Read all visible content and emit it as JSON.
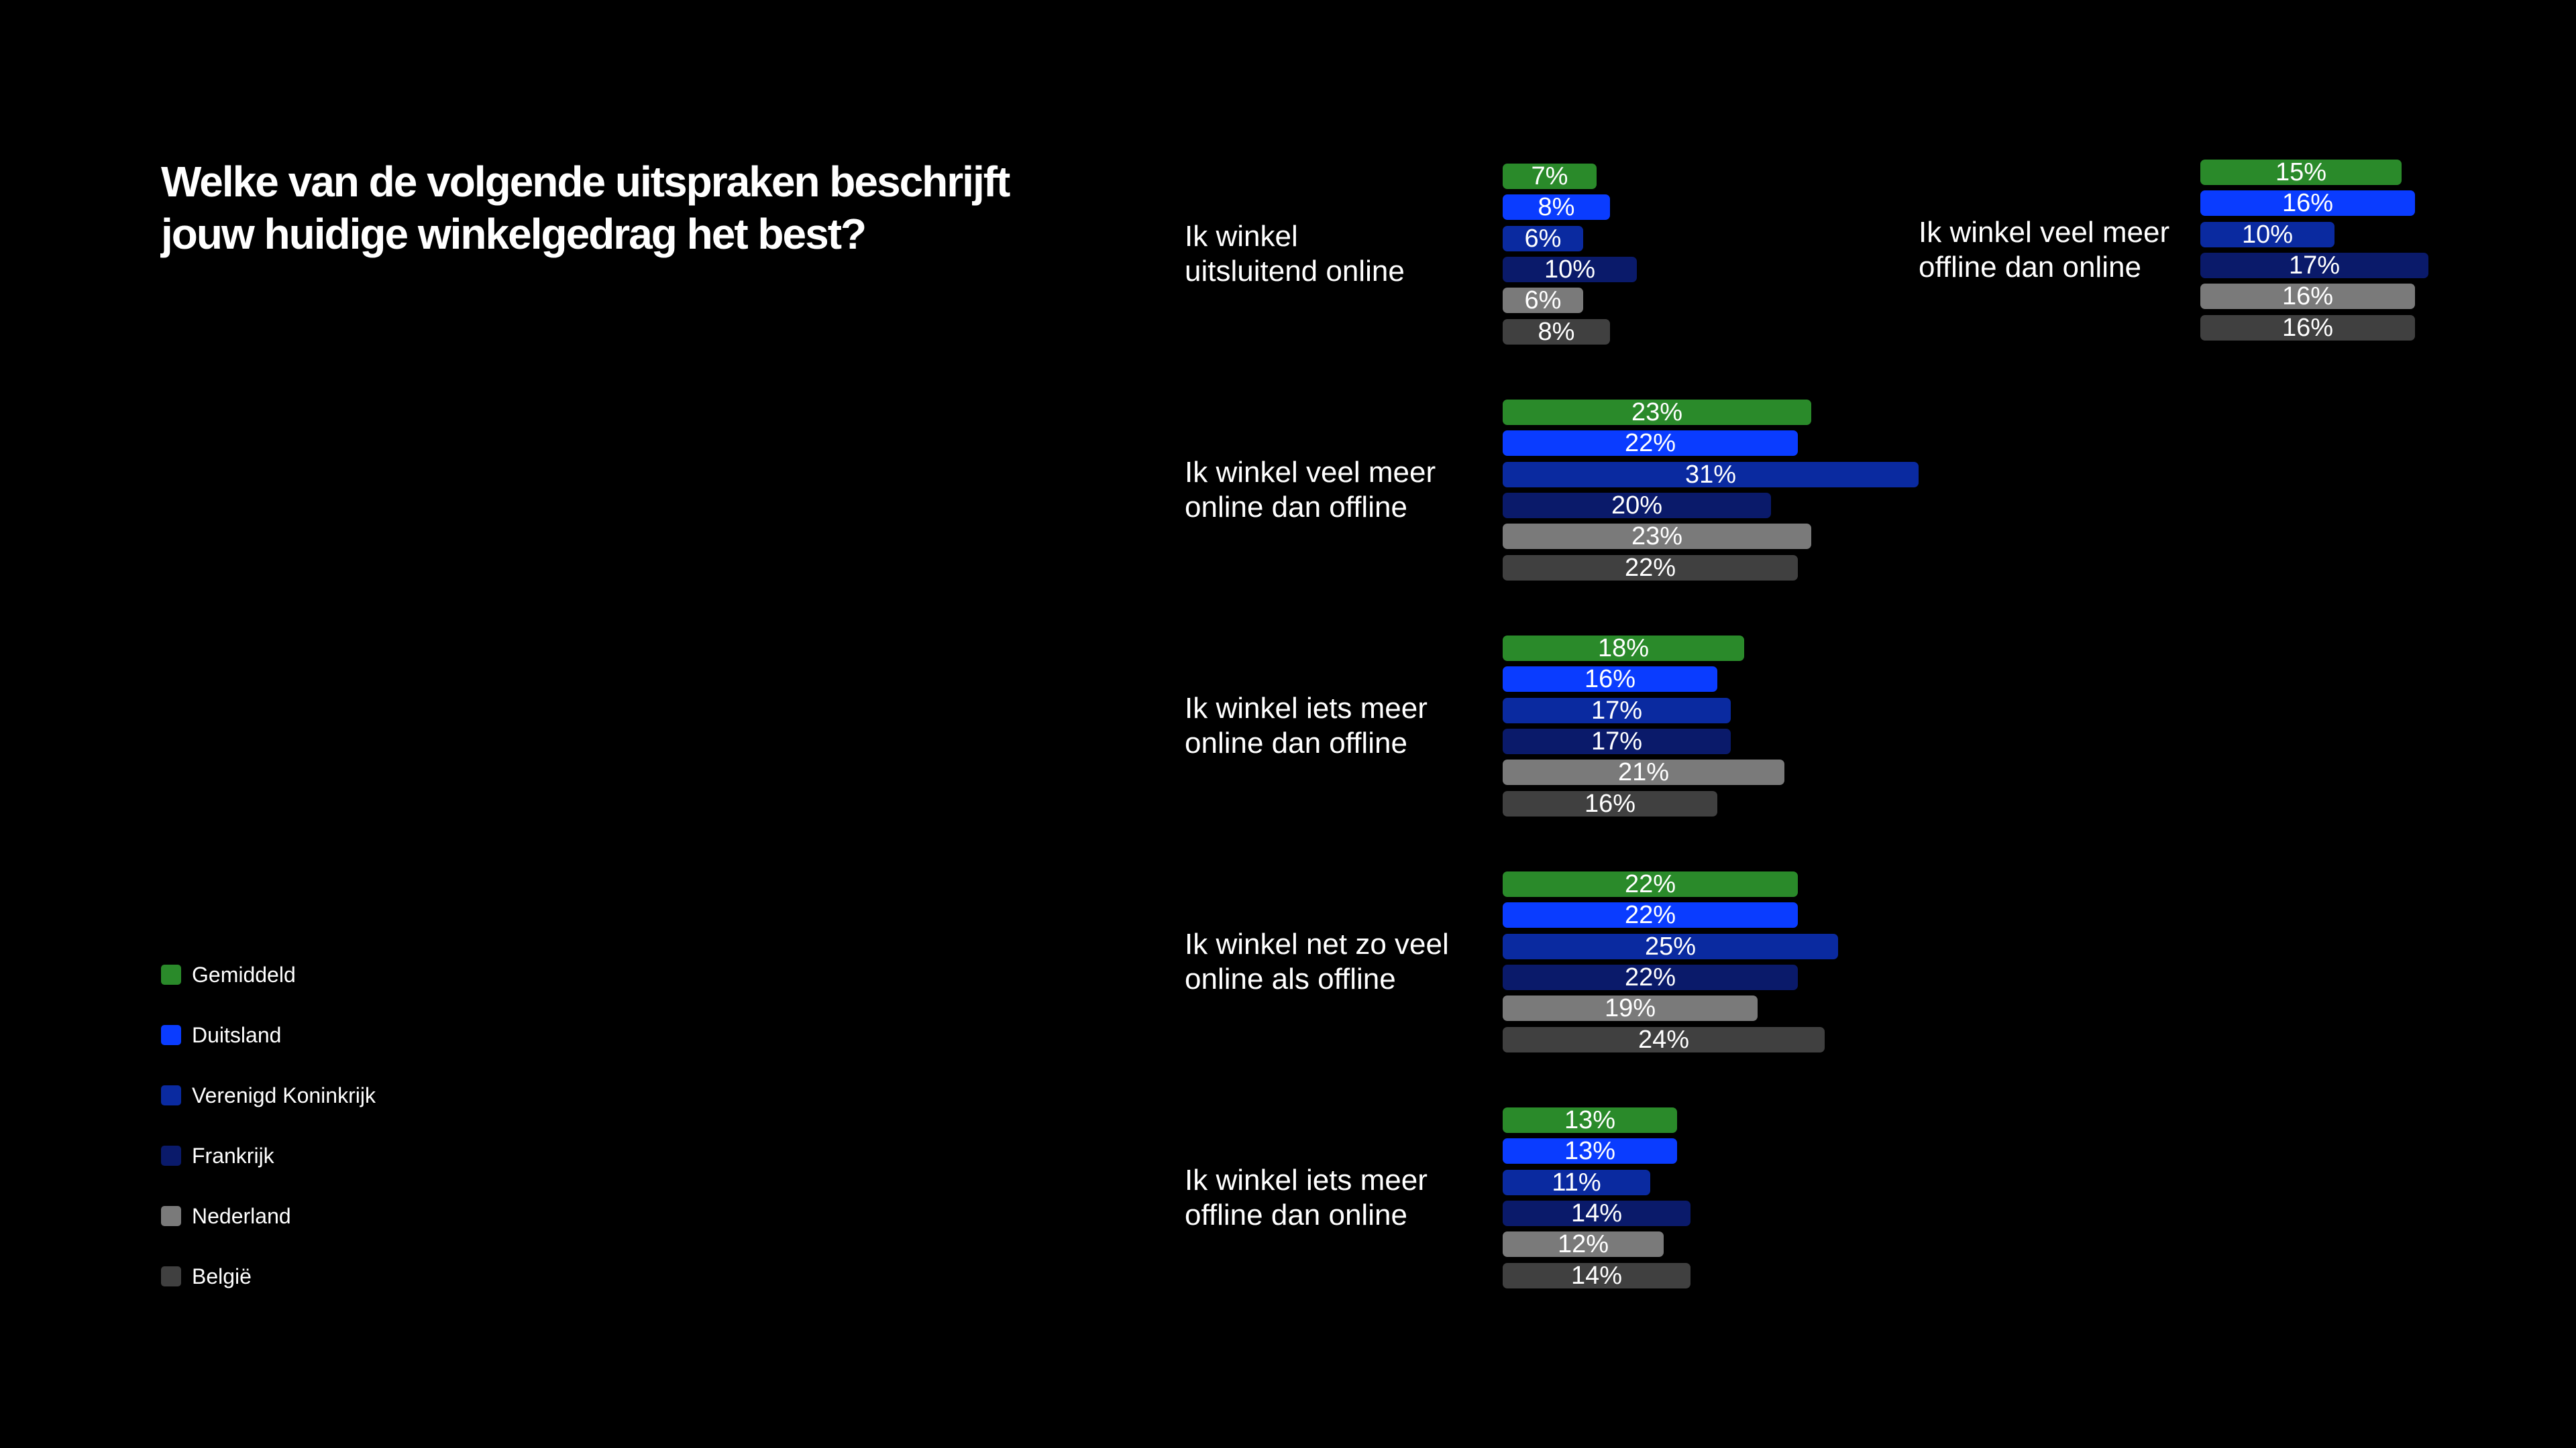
{
  "title_lines": [
    "Welke van de volgende uitspraken beschrijft",
    "jouw huidige winkelgedrag het best?"
  ],
  "colors": {
    "Gemiddeld": "#2a8a2a",
    "Duitsland": "#0a3cff",
    "Verenigd Koninkrijk": "#0a2aa0",
    "Frankrijk": "#0a1a6a",
    "Nederland": "#7a7a7a",
    "België": "#404040"
  },
  "chart_data": {
    "type": "bar",
    "orientation": "horizontal",
    "unit": "%",
    "series": [
      {
        "name": "Gemiddeld",
        "color": "#2a8a2a"
      },
      {
        "name": "Duitsland",
        "color": "#0a3cff"
      },
      {
        "name": "Verenigd Koninkrijk",
        "color": "#0a2aa0"
      },
      {
        "name": "Frankrijk",
        "color": "#0a1a6a"
      },
      {
        "name": "Nederland",
        "color": "#7a7a7a"
      },
      {
        "name": "België",
        "color": "#404040"
      }
    ],
    "groups": [
      {
        "label_lines": [
          "Ik winkel",
          "uitsluitend online"
        ],
        "values": [
          7,
          8,
          6,
          10,
          6,
          8
        ]
      },
      {
        "label_lines": [
          "Ik winkel veel meer",
          "online dan offline"
        ],
        "values": [
          23,
          22,
          31,
          20,
          23,
          22
        ]
      },
      {
        "label_lines": [
          "Ik winkel iets meer",
          "online dan offline"
        ],
        "values": [
          18,
          16,
          17,
          17,
          21,
          16
        ]
      },
      {
        "label_lines": [
          "Ik winkel net zo veel",
          "online als offline"
        ],
        "values": [
          22,
          22,
          25,
          22,
          19,
          24
        ]
      },
      {
        "label_lines": [
          "Ik winkel iets meer",
          "offline dan online"
        ],
        "values": [
          13,
          13,
          11,
          14,
          12,
          14
        ]
      },
      {
        "label_lines": [
          "Ik winkel veel meer",
          "offline dan online"
        ],
        "values": [
          15,
          16,
          10,
          17,
          16,
          16
        ]
      }
    ],
    "legend_position": "bottom-left",
    "grid": false
  }
}
